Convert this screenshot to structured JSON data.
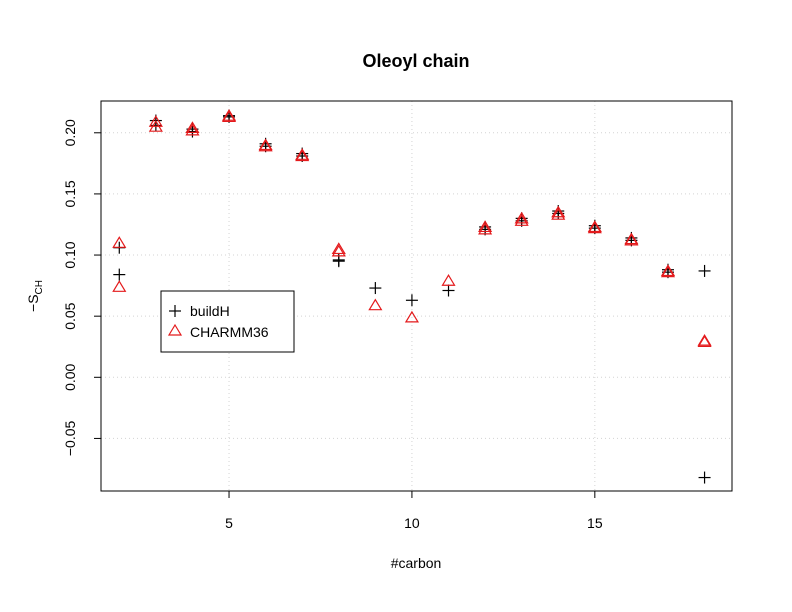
{
  "chart_data": {
    "type": "scatter",
    "title": "Oleoyl chain",
    "xlabel": "#carbon",
    "ylabel": "−S",
    "ylabel_sub": "CH",
    "xlim": [
      1.5,
      18.75
    ],
    "ylim": [
      -0.093,
      0.226
    ],
    "xticks": [
      5,
      10,
      15
    ],
    "xtick_labels": [
      "5",
      "10",
      "15"
    ],
    "yticks": [
      -0.05,
      0.0,
      0.05,
      0.1,
      0.15,
      0.2
    ],
    "ytick_labels": [
      "−0.05",
      "0.00",
      "0.05",
      "0.10",
      "0.15",
      "0.20"
    ],
    "grid": true,
    "legend_position": "left",
    "series": [
      {
        "name": "buildH",
        "marker": "plus",
        "color": "#000000",
        "points": [
          [
            2,
            0.106
          ],
          [
            2,
            0.084
          ],
          [
            3,
            0.21
          ],
          [
            3,
            0.206
          ],
          [
            4,
            0.203
          ],
          [
            4,
            0.201
          ],
          [
            5,
            0.214
          ],
          [
            5,
            0.213
          ],
          [
            6,
            0.191
          ],
          [
            6,
            0.189
          ],
          [
            7,
            0.183
          ],
          [
            7,
            0.181
          ],
          [
            8,
            0.096
          ],
          [
            8,
            0.095
          ],
          [
            9,
            0.073
          ],
          [
            10,
            0.063
          ],
          [
            11,
            0.071
          ],
          [
            12,
            0.123
          ],
          [
            12,
            0.121
          ],
          [
            13,
            0.13
          ],
          [
            13,
            0.128
          ],
          [
            14,
            0.136
          ],
          [
            14,
            0.134
          ],
          [
            15,
            0.124
          ],
          [
            15,
            0.122
          ],
          [
            16,
            0.114
          ],
          [
            16,
            0.112
          ],
          [
            17,
            0.088
          ],
          [
            17,
            0.086
          ],
          [
            18,
            0.087
          ],
          [
            18,
            -0.082
          ]
        ]
      },
      {
        "name": "CHARMM36",
        "marker": "triangle",
        "color": "#e41a1c",
        "points": [
          [
            2,
            0.11
          ],
          [
            2,
            0.074
          ],
          [
            3,
            0.209
          ],
          [
            3,
            0.205
          ],
          [
            4,
            0.204
          ],
          [
            4,
            0.202
          ],
          [
            5,
            0.214
          ],
          [
            5,
            0.213
          ],
          [
            6,
            0.19
          ],
          [
            6,
            0.189
          ],
          [
            7,
            0.182
          ],
          [
            7,
            0.181
          ],
          [
            8,
            0.105
          ],
          [
            8,
            0.103
          ],
          [
            9,
            0.059
          ],
          [
            10,
            0.049
          ],
          [
            11,
            0.079
          ],
          [
            12,
            0.123
          ],
          [
            12,
            0.121
          ],
          [
            13,
            0.13
          ],
          [
            13,
            0.128
          ],
          [
            14,
            0.135
          ],
          [
            14,
            0.133
          ],
          [
            15,
            0.123
          ],
          [
            15,
            0.122
          ],
          [
            16,
            0.113
          ],
          [
            16,
            0.112
          ],
          [
            17,
            0.087
          ],
          [
            17,
            0.086
          ],
          [
            18,
            0.03
          ],
          [
            18,
            0.029
          ]
        ]
      }
    ]
  }
}
